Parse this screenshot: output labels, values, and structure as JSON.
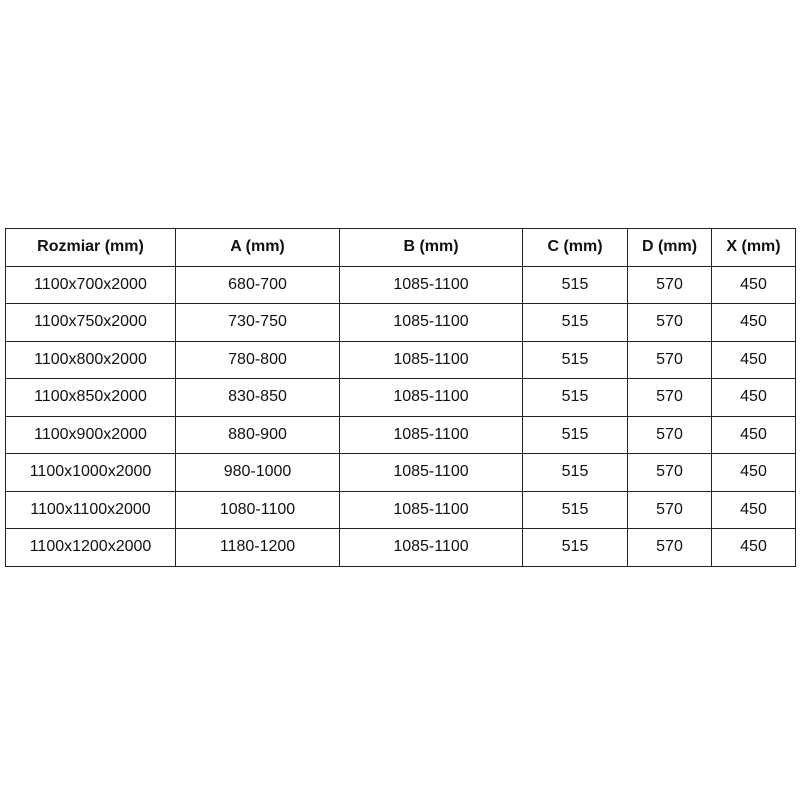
{
  "table": {
    "headers": [
      "Rozmiar (mm)",
      "A (mm)",
      "B (mm)",
      "C (mm)",
      "D (mm)",
      "X (mm)"
    ],
    "rows": [
      [
        "1100x700x2000",
        "680-700",
        "1085-1100",
        "515",
        "570",
        "450"
      ],
      [
        "1100x750x2000",
        "730-750",
        "1085-1100",
        "515",
        "570",
        "450"
      ],
      [
        "1100x800x2000",
        "780-800",
        "1085-1100",
        "515",
        "570",
        "450"
      ],
      [
        "1100x850x2000",
        "830-850",
        "1085-1100",
        "515",
        "570",
        "450"
      ],
      [
        "1100x900x2000",
        "880-900",
        "1085-1100",
        "515",
        "570",
        "450"
      ],
      [
        "1100x1000x2000",
        "980-1000",
        "1085-1100",
        "515",
        "570",
        "450"
      ],
      [
        "1100x1100x2000",
        "1080-1100",
        "1085-1100",
        "515",
        "570",
        "450"
      ],
      [
        "1100x1200x2000",
        "1180-1200",
        "1085-1100",
        "515",
        "570",
        "450"
      ]
    ]
  }
}
